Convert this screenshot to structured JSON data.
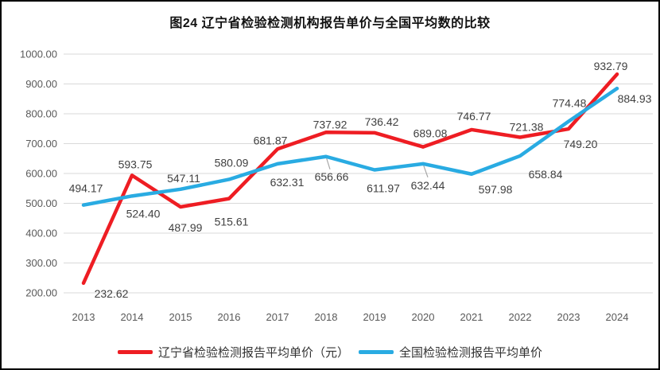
{
  "title": "图24 辽宁省检验检测机构报告单价与全国平均数的比较",
  "colors": {
    "liaoning": "#EE1D23",
    "national": "#29ABE2",
    "grid": "#D9D9D9",
    "axis_text": "#595959",
    "label_text": "#404040",
    "leader": "#A6A6A6",
    "border": "#000000",
    "background": "#FFFFFF"
  },
  "chart_data": {
    "type": "line",
    "title": "图24 辽宁省检验检测机构报告单价与全国平均数的比较",
    "categories": [
      "2013",
      "2014",
      "2015",
      "2016",
      "2017",
      "2018",
      "2019",
      "2020",
      "2021",
      "2022",
      "2023",
      "2024"
    ],
    "series": [
      {
        "key": "liaoning",
        "name": "辽宁省检验检测报告平均单价（元）",
        "color": "#EE1D23",
        "values": [
          232.62,
          593.75,
          487.99,
          515.61,
          681.87,
          737.92,
          736.42,
          689.08,
          746.77,
          721.38,
          749.2,
          932.79
        ],
        "label_offsets": [
          [
            35,
            13
          ],
          [
            4,
            -14
          ],
          [
            6,
            26
          ],
          [
            3,
            29
          ],
          [
            -9,
            -11
          ],
          [
            5,
            -10
          ],
          [
            9,
            -14
          ],
          [
            9,
            -17
          ],
          [
            3,
            -17
          ],
          [
            8,
            -13
          ],
          [
            15,
            19
          ],
          [
            -8,
            -10
          ]
        ]
      },
      {
        "key": "national",
        "name": "全国检验检测报告平均单价",
        "color": "#29ABE2",
        "values": [
          494.17,
          524.4,
          547.11,
          580.09,
          632.31,
          656.66,
          611.97,
          632.44,
          597.98,
          658.84,
          774.48,
          884.93
        ],
        "label_offsets": [
          [
            3,
            -21
          ],
          [
            14,
            22
          ],
          [
            4,
            -14
          ],
          [
            3,
            -21
          ],
          [
            12,
            23
          ],
          [
            7,
            25
          ],
          [
            11,
            23
          ],
          [
            6,
            27
          ],
          [
            30,
            19
          ],
          [
            32,
            23
          ],
          [
            1,
            -23
          ],
          [
            22,
            13
          ]
        ]
      }
    ],
    "ylim": [
      200,
      1000
    ],
    "ytick_labels": [
      "1000.00",
      "900.00",
      "800.00",
      "700.00",
      "600.00",
      "500.00",
      "400.00",
      "300.00",
      "200.00"
    ],
    "label_decimals": 2,
    "grid": true,
    "legend_position": "bottom",
    "leaders": [
      {
        "series": 1,
        "index": 5,
        "end": [
          5,
          16
        ]
      },
      {
        "series": 1,
        "index": 7,
        "end": [
          6,
          17
        ]
      }
    ]
  },
  "legend": {
    "items": [
      {
        "label": "辽宁省检验检测报告平均单价（元）",
        "swatch": "liaoning"
      },
      {
        "label": "全国检验检测报告平均单价",
        "swatch": "national"
      }
    ]
  }
}
